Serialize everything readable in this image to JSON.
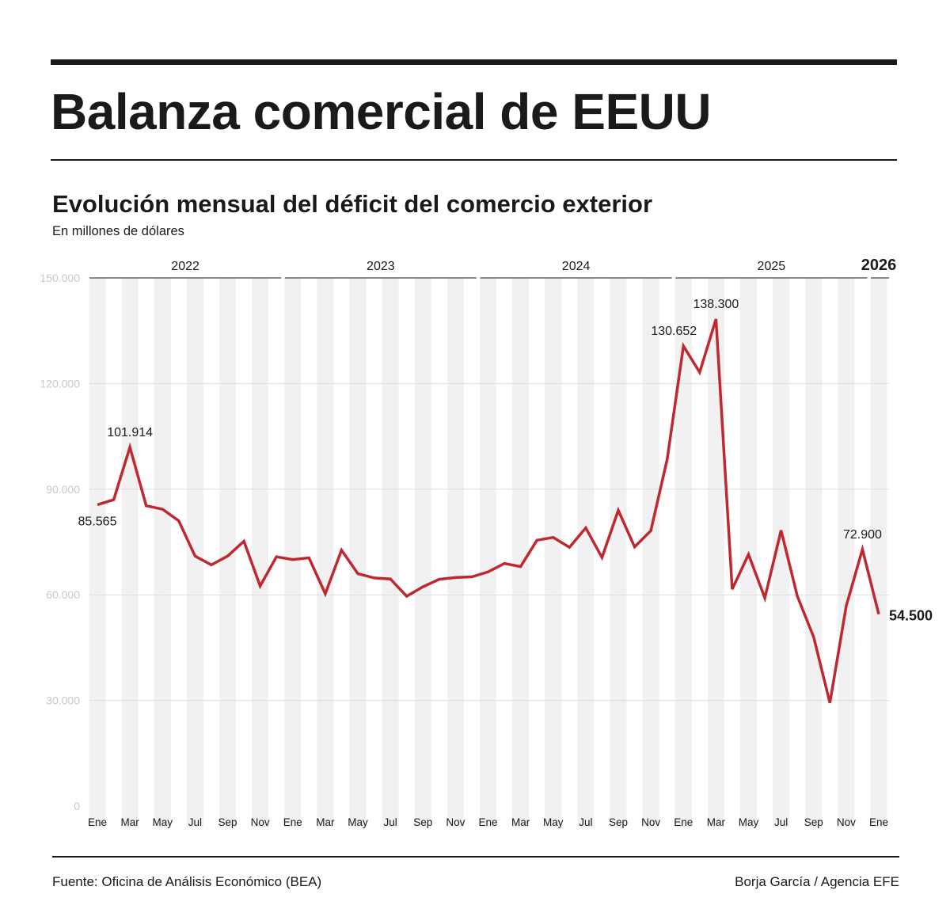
{
  "header": {
    "title": "Balanza comercial de EEUU",
    "subtitle": "Evolución mensual del déficit del comercio exterior",
    "units": "En millones de dólares"
  },
  "footer": {
    "source": "Fuente: Oficina de Análisis Económico (BEA)",
    "credit": "Borja García / Agencia EFE"
  },
  "colors": {
    "line": "#c0282f",
    "stripe": "#f1f1f1",
    "grid": "#dddddd",
    "axis_text": "#c8c8c8"
  },
  "chart_data": {
    "type": "line",
    "ylim": [
      0,
      150000
    ],
    "yticks": [
      0,
      30000,
      60000,
      90000,
      120000,
      150000
    ],
    "ytick_labels": [
      "0",
      "30.000",
      "60.000",
      "90.000",
      "120.000",
      "150.000"
    ],
    "grid": true,
    "years": [
      "2022",
      "2023",
      "2024",
      "2025",
      "2026"
    ],
    "month_tick_labels": [
      "Ene",
      "Mar",
      "May",
      "Jul",
      "Sep",
      "Nov",
      "Ene",
      "Mar",
      "May",
      "Jul",
      "Sep",
      "Nov",
      "Ene",
      "Mar",
      "May",
      "Jul",
      "Sep",
      "Nov",
      "Ene",
      "Mar",
      "May",
      "Jul",
      "Sep",
      "Nov",
      "Ene"
    ],
    "x": [
      "2022-01",
      "2022-02",
      "2022-03",
      "2022-04",
      "2022-05",
      "2022-06",
      "2022-07",
      "2022-08",
      "2022-09",
      "2022-10",
      "2022-11",
      "2022-12",
      "2023-01",
      "2023-02",
      "2023-03",
      "2023-04",
      "2023-05",
      "2023-06",
      "2023-07",
      "2023-08",
      "2023-09",
      "2023-10",
      "2023-11",
      "2023-12",
      "2024-01",
      "2024-02",
      "2024-03",
      "2024-04",
      "2024-05",
      "2024-06",
      "2024-07",
      "2024-08",
      "2024-09",
      "2024-10",
      "2024-11",
      "2024-12",
      "2025-01",
      "2025-02",
      "2025-03",
      "2025-04",
      "2025-05",
      "2025-06",
      "2025-07",
      "2025-08",
      "2025-09",
      "2025-10",
      "2025-11",
      "2025-12",
      "2026-01"
    ],
    "values": [
      85565,
      87000,
      101914,
      85300,
      84300,
      81000,
      71000,
      68500,
      71000,
      75200,
      62500,
      70800,
      70000,
      70500,
      60300,
      72700,
      66000,
      64800,
      64500,
      59600,
      62300,
      64400,
      64900,
      65100,
      66500,
      68900,
      68000,
      75500,
      76300,
      73500,
      79000,
      70600,
      84000,
      73600,
      78200,
      98400,
      130652,
      123200,
      138300,
      61600,
      71500,
      59100,
      78300,
      59600,
      48000,
      29300,
      56800,
      72900,
      54500
    ],
    "annotations": [
      {
        "index": 0,
        "label": "85.565"
      },
      {
        "index": 2,
        "label": "101.914"
      },
      {
        "index": 36,
        "label": "130.652"
      },
      {
        "index": 38,
        "label": "138.300"
      },
      {
        "index": 47,
        "label": "72.900"
      },
      {
        "index": 48,
        "label": "54.500"
      }
    ]
  }
}
